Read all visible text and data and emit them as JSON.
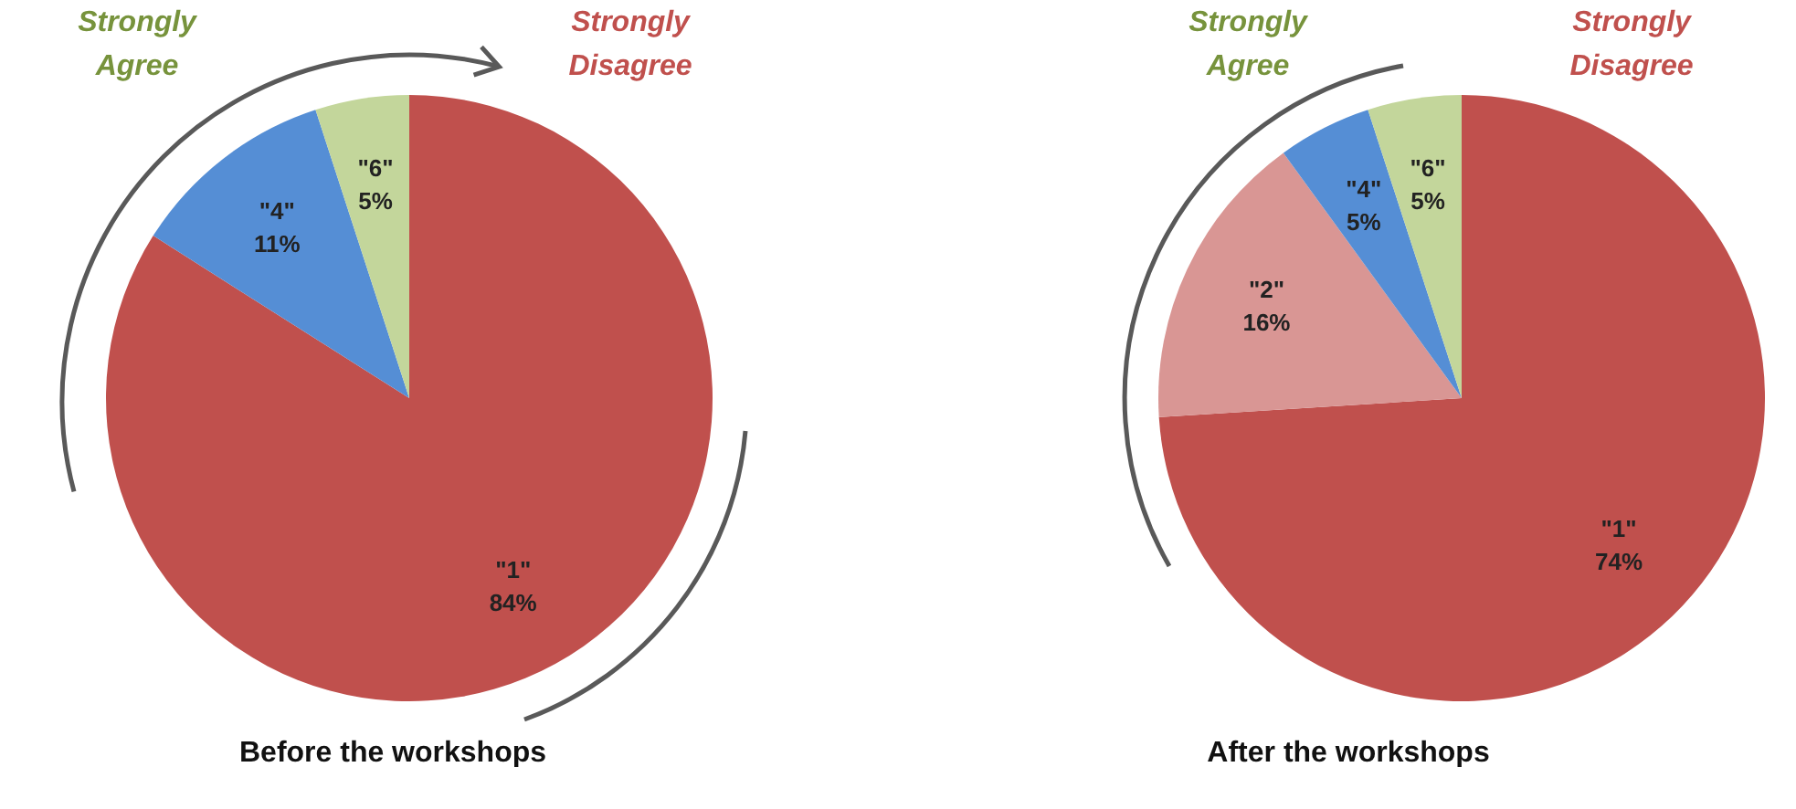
{
  "chart_data": [
    {
      "type": "pie",
      "title": "Before the workshops",
      "categories": [
        "\"1\"",
        "\"4\"",
        "\"6\""
      ],
      "values": [
        84,
        11,
        5
      ],
      "value_labels": [
        "84%",
        "11%",
        "5%"
      ],
      "colors": [
        "#c0504d",
        "#558ed5",
        "#c3d69b"
      ],
      "annotations": [
        "Strongly Agree",
        "Strongly Disagree"
      ]
    },
    {
      "type": "pie",
      "title": "After the workshops",
      "categories": [
        "\"1\"",
        "\"2\"",
        "\"4\"",
        "\"6\""
      ],
      "values": [
        74,
        16,
        5,
        5
      ],
      "value_labels": [
        "74%",
        "16%",
        "5%",
        "5%"
      ],
      "colors": [
        "#c0504d",
        "#d99694",
        "#558ed5",
        "#c3d69b"
      ],
      "annotations": [
        "Strongly Agree",
        "Strongly Disagree"
      ]
    }
  ]
}
